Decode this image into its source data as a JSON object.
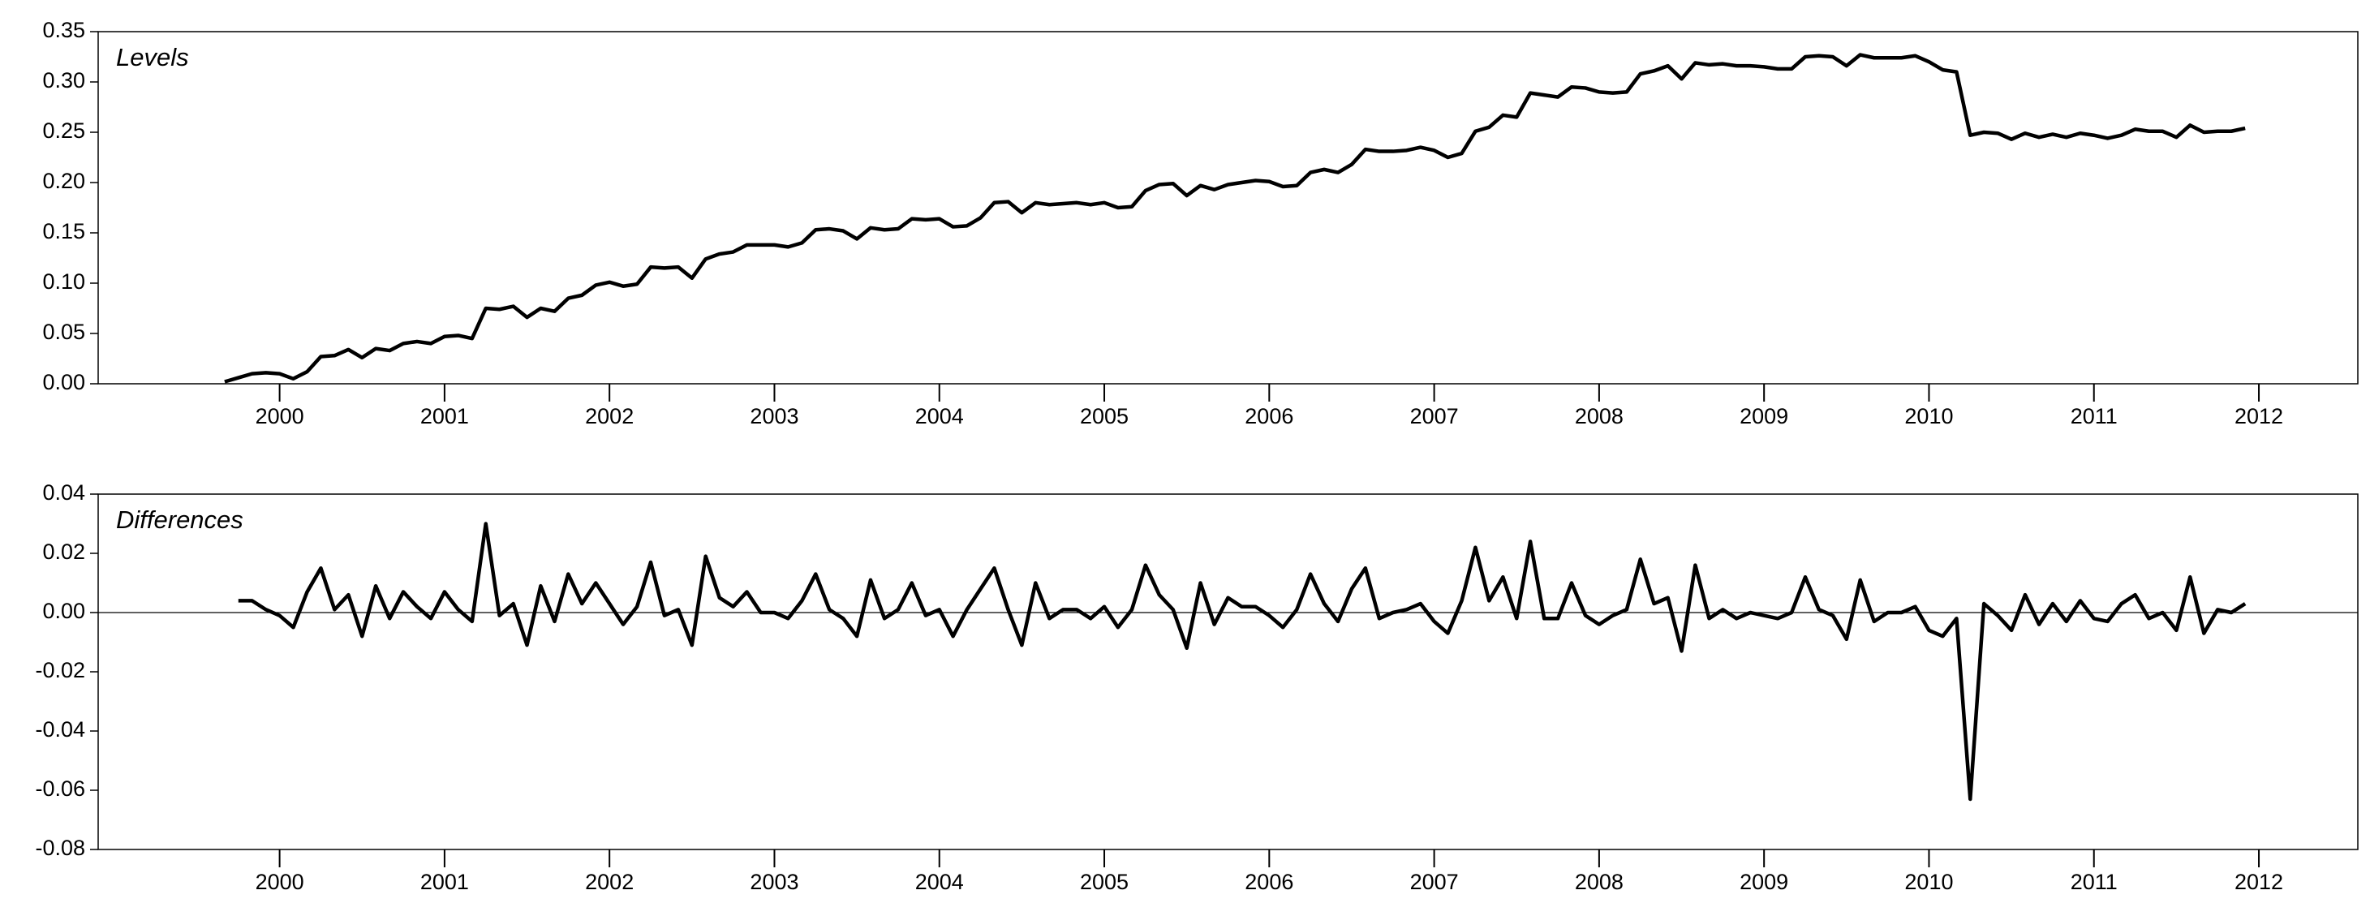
{
  "chart_data": [
    {
      "type": "line",
      "title": "Levels",
      "x": [
        1999.667,
        1999.75,
        1999.833,
        1999.917,
        2000,
        2000.083,
        2000.167,
        2000.25,
        2000.333,
        2000.417,
        2000.5,
        2000.583,
        2000.667,
        2000.75,
        2000.833,
        2000.917,
        2001,
        2001.083,
        2001.167,
        2001.25,
        2001.333,
        2001.417,
        2001.5,
        2001.583,
        2001.667,
        2001.75,
        2001.833,
        2001.917,
        2002,
        2002.083,
        2002.167,
        2002.25,
        2002.333,
        2002.417,
        2002.5,
        2002.583,
        2002.667,
        2002.75,
        2002.833,
        2002.917,
        2003,
        2003.083,
        2003.167,
        2003.25,
        2003.333,
        2003.417,
        2003.5,
        2003.583,
        2003.667,
        2003.75,
        2003.833,
        2003.917,
        2004,
        2004.083,
        2004.167,
        2004.25,
        2004.333,
        2004.417,
        2004.5,
        2004.583,
        2004.667,
        2004.75,
        2004.833,
        2004.917,
        2005,
        2005.083,
        2005.167,
        2005.25,
        2005.333,
        2005.417,
        2005.5,
        2005.583,
        2005.667,
        2005.75,
        2005.833,
        2005.917,
        2006,
        2006.083,
        2006.167,
        2006.25,
        2006.333,
        2006.417,
        2006.5,
        2006.583,
        2006.667,
        2006.75,
        2006.833,
        2006.917,
        2007,
        2007.083,
        2007.167,
        2007.25,
        2007.333,
        2007.417,
        2007.5,
        2007.583,
        2007.667,
        2007.75,
        2007.833,
        2007.917,
        2008,
        2008.083,
        2008.167,
        2008.25,
        2008.333,
        2008.417,
        2008.5,
        2008.583,
        2008.667,
        2008.75,
        2008.833,
        2008.917,
        2009,
        2009.083,
        2009.167,
        2009.25,
        2009.333,
        2009.417,
        2009.5,
        2009.583,
        2009.667,
        2009.75,
        2009.833,
        2009.917,
        2010,
        2010.083,
        2010.167,
        2010.25,
        2010.333,
        2010.417,
        2010.5,
        2010.583,
        2010.667,
        2010.75,
        2010.833,
        2010.917,
        2011,
        2011.083,
        2011.167,
        2011.25,
        2011.333,
        2011.417,
        2011.5,
        2011.583,
        2011.667,
        2011.75,
        2011.833,
        2011.917
      ],
      "values": [
        0.002,
        0.006,
        0.01,
        0.011,
        0.01,
        0.005,
        0.012,
        0.027,
        0.028,
        0.034,
        0.026,
        0.035,
        0.033,
        0.04,
        0.042,
        0.04,
        0.047,
        0.048,
        0.045,
        0.075,
        0.074,
        0.077,
        0.066,
        0.075,
        0.072,
        0.085,
        0.088,
        0.098,
        0.101,
        0.097,
        0.099,
        0.116,
        0.115,
        0.116,
        0.105,
        0.124,
        0.129,
        0.131,
        0.138,
        0.138,
        0.138,
        0.136,
        0.14,
        0.153,
        0.154,
        0.152,
        0.144,
        0.155,
        0.153,
        0.154,
        0.164,
        0.163,
        0.164,
        0.156,
        0.157,
        0.165,
        0.18,
        0.181,
        0.17,
        0.18,
        0.178,
        0.179,
        0.18,
        0.178,
        0.18,
        0.175,
        0.176,
        0.192,
        0.198,
        0.199,
        0.187,
        0.197,
        0.193,
        0.198,
        0.2,
        0.202,
        0.201,
        0.196,
        0.197,
        0.21,
        0.213,
        0.21,
        0.218,
        0.233,
        0.231,
        0.231,
        0.232,
        0.235,
        0.232,
        0.225,
        0.229,
        0.251,
        0.255,
        0.267,
        0.265,
        0.289,
        0.287,
        0.285,
        0.295,
        0.294,
        0.29,
        0.289,
        0.29,
        0.308,
        0.311,
        0.316,
        0.303,
        0.319,
        0.317,
        0.318,
        0.316,
        0.316,
        0.315,
        0.313,
        0.313,
        0.325,
        0.326,
        0.325,
        0.316,
        0.327,
        0.324,
        0.324,
        0.324,
        0.326,
        0.32,
        0.312,
        0.31,
        0.247,
        0.25,
        0.249,
        0.243,
        0.249,
        0.245,
        0.248,
        0.245,
        0.249,
        0.247,
        0.244,
        0.247,
        0.253,
        0.251,
        0.251,
        0.245,
        0.257,
        0.25,
        0.251,
        0.251,
        0.254
      ],
      "color": "#000000",
      "xlim": [
        1998.9,
        2012.6
      ],
      "xticks": [
        2000,
        2001,
        2002,
        2003,
        2004,
        2005,
        2006,
        2007,
        2008,
        2009,
        2010,
        2011,
        2012
      ],
      "ylim": [
        0,
        0.35
      ],
      "yticks": [
        {
          "value": 0,
          "label": "0.00"
        },
        0.05,
        {
          "value": 0.1,
          "label": "0.10"
        },
        0.15,
        {
          "value": 0.2,
          "label": "0.20"
        },
        0.25,
        {
          "value": 0.3,
          "label": "0.30"
        },
        0.35
      ],
      "zero_line": false
    },
    {
      "type": "line",
      "title": "Differences",
      "x": [
        1999.75,
        1999.833,
        1999.917,
        2000,
        2000.083,
        2000.167,
        2000.25,
        2000.333,
        2000.417,
        2000.5,
        2000.583,
        2000.667,
        2000.75,
        2000.833,
        2000.917,
        2001,
        2001.083,
        2001.167,
        2001.25,
        2001.333,
        2001.417,
        2001.5,
        2001.583,
        2001.667,
        2001.75,
        2001.833,
        2001.917,
        2002,
        2002.083,
        2002.167,
        2002.25,
        2002.333,
        2002.417,
        2002.5,
        2002.583,
        2002.667,
        2002.75,
        2002.833,
        2002.917,
        2003,
        2003.083,
        2003.167,
        2003.25,
        2003.333,
        2003.417,
        2003.5,
        2003.583,
        2003.667,
        2003.75,
        2003.833,
        2003.917,
        2004,
        2004.083,
        2004.167,
        2004.25,
        2004.333,
        2004.417,
        2004.5,
        2004.583,
        2004.667,
        2004.75,
        2004.833,
        2004.917,
        2005,
        2005.083,
        2005.167,
        2005.25,
        2005.333,
        2005.417,
        2005.5,
        2005.583,
        2005.667,
        2005.75,
        2005.833,
        2005.917,
        2006,
        2006.083,
        2006.167,
        2006.25,
        2006.333,
        2006.417,
        2006.5,
        2006.583,
        2006.667,
        2006.75,
        2006.833,
        2006.917,
        2007,
        2007.083,
        2007.167,
        2007.25,
        2007.333,
        2007.417,
        2007.5,
        2007.583,
        2007.667,
        2007.75,
        2007.833,
        2007.917,
        2008,
        2008.083,
        2008.167,
        2008.25,
        2008.333,
        2008.417,
        2008.5,
        2008.583,
        2008.667,
        2008.75,
        2008.833,
        2008.917,
        2009,
        2009.083,
        2009.167,
        2009.25,
        2009.333,
        2009.417,
        2009.5,
        2009.583,
        2009.667,
        2009.75,
        2009.833,
        2009.917,
        2010,
        2010.083,
        2010.167,
        2010.25,
        2010.333,
        2010.417,
        2010.5,
        2010.583,
        2010.667,
        2010.75,
        2010.833,
        2010.917,
        2011,
        2011.083,
        2011.167,
        2011.25,
        2011.333,
        2011.417,
        2011.5,
        2011.583,
        2011.667,
        2011.75,
        2011.833,
        2011.917
      ],
      "values": [
        0.004,
        0.004,
        0.001,
        -0.001,
        -0.005,
        0.007,
        0.015,
        0.001,
        0.006,
        -0.008,
        0.009,
        -0.002,
        0.007,
        0.002,
        -0.002,
        0.007,
        0.001,
        -0.003,
        0.03,
        -0.001,
        0.003,
        -0.011,
        0.009,
        -0.003,
        0.013,
        0.003,
        0.01,
        0.003,
        -0.004,
        0.002,
        0.017,
        -0.001,
        0.001,
        -0.011,
        0.019,
        0.005,
        0.002,
        0.007,
        0.0,
        0.0,
        -0.002,
        0.004,
        0.013,
        0.001,
        -0.002,
        -0.008,
        0.011,
        -0.002,
        0.001,
        0.01,
        -0.001,
        0.001,
        -0.008,
        0.001,
        0.008,
        0.015,
        0.001,
        -0.011,
        0.01,
        -0.002,
        0.001,
        0.001,
        -0.002,
        0.002,
        -0.005,
        0.001,
        0.016,
        0.006,
        0.001,
        -0.012,
        0.01,
        -0.004,
        0.005,
        0.002,
        0.002,
        -0.001,
        -0.005,
        0.001,
        0.013,
        0.003,
        -0.003,
        0.008,
        0.015,
        -0.002,
        0.0,
        0.001,
        0.003,
        -0.003,
        -0.007,
        0.004,
        0.022,
        0.004,
        0.012,
        -0.002,
        0.024,
        -0.002,
        -0.002,
        0.01,
        -0.001,
        -0.004,
        -0.001,
        0.001,
        0.018,
        0.003,
        0.005,
        -0.013,
        0.016,
        -0.002,
        0.001,
        -0.002,
        0.0,
        -0.001,
        -0.002,
        0.0,
        0.012,
        0.001,
        -0.001,
        -0.009,
        0.011,
        -0.003,
        0.0,
        0.0,
        0.002,
        -0.006,
        -0.008,
        -0.002,
        -0.063,
        0.003,
        -0.001,
        -0.006,
        0.006,
        -0.004,
        0.003,
        -0.003,
        0.004,
        -0.002,
        -0.003,
        0.003,
        0.006,
        -0.002,
        0.0,
        -0.006,
        0.012,
        -0.007,
        0.001,
        0.0,
        0.003
      ],
      "color": "#000000",
      "xlim": [
        1998.9,
        2012.6
      ],
      "xticks": [
        2000,
        2001,
        2002,
        2003,
        2004,
        2005,
        2006,
        2007,
        2008,
        2009,
        2010,
        2011,
        2012
      ],
      "ylim": [
        -0.08,
        0.04
      ],
      "yticks": [
        -0.08,
        -0.06,
        -0.04,
        -0.02,
        {
          "value": 0,
          "label": "0.00"
        },
        0.02,
        0.04
      ],
      "zero_line": true
    }
  ]
}
